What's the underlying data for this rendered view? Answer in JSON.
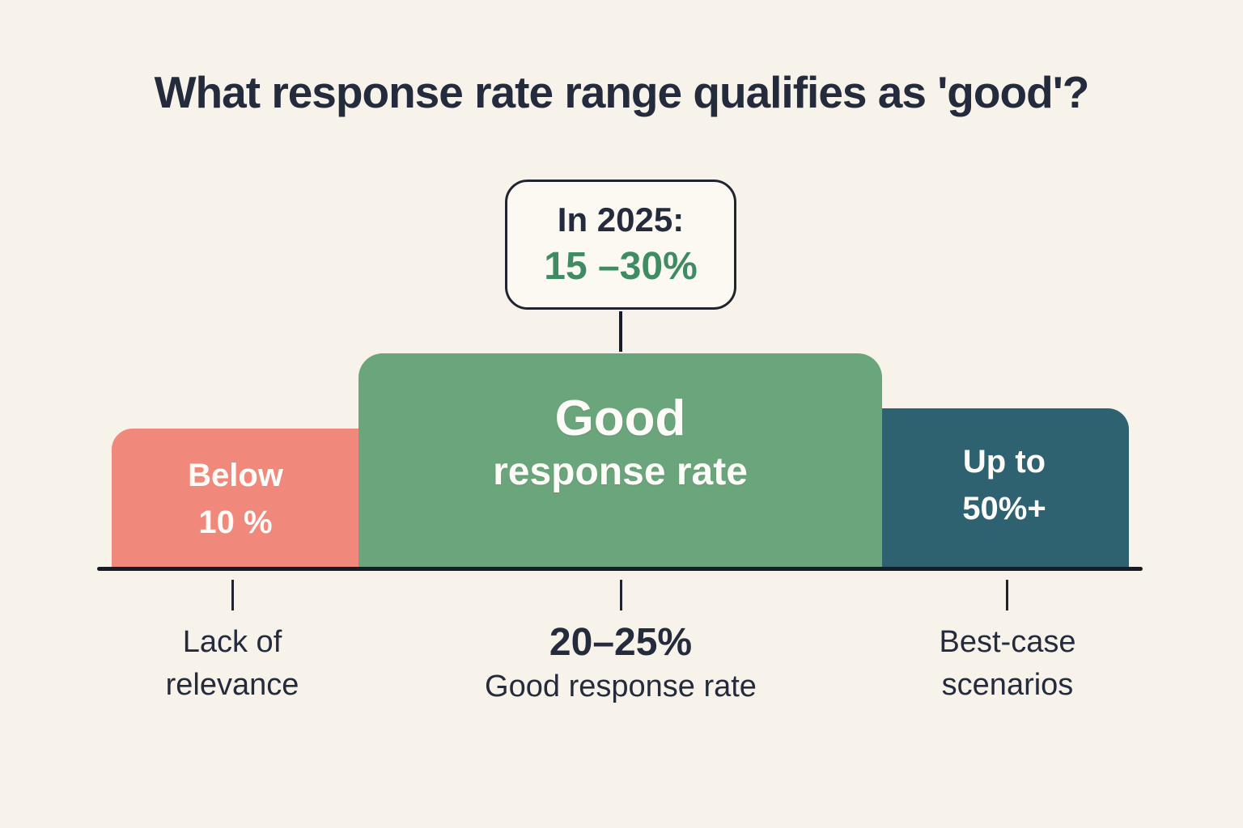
{
  "title": "What response rate range qualifies as 'good'?",
  "callout": {
    "prefix": "In 2025:",
    "range": "15 –30%"
  },
  "bars": {
    "low": {
      "line1": "Below",
      "line2": "10 %"
    },
    "good": {
      "line1": "Good",
      "line2": "response rate"
    },
    "high": {
      "line1": "Up to",
      "line2": "50%+"
    }
  },
  "axis_labels": {
    "low": {
      "line1": "Lack of",
      "line2": "relevance"
    },
    "good": {
      "value": "20–25%",
      "caption": "Good response rate"
    },
    "high": {
      "line1": "Best-case",
      "line2": "scenarios"
    }
  },
  "colors": {
    "background": "#F7F3EB",
    "text_dark": "#242B3C",
    "bar_low": "#F0897B",
    "bar_good": "#6BA57B",
    "bar_high": "#2E6270",
    "accent_green": "#3E8B64",
    "axis_line": "#161C28",
    "callout_fill": "#FCF9F3"
  },
  "chart_data": {
    "type": "bar",
    "title": "What response rate range qualifies as 'good'?",
    "categories": [
      "Below 10%",
      "Good response rate",
      "Up to 50%+"
    ],
    "relative_heights": [
      0.65,
      1.0,
      0.74
    ],
    "series": [
      {
        "name": "response-rate-ranges",
        "values": [
          10,
          25,
          50
        ],
        "value_labels": [
          "Below 10 %",
          "Good response rate",
          "Up to 50%+"
        ]
      }
    ],
    "bar_colors": [
      "#F0897B",
      "#6BA57B",
      "#2E6270"
    ],
    "annotations": [
      {
        "target": "Below 10%",
        "text": "Lack of relevance"
      },
      {
        "target": "Good response rate",
        "text": "20–25% Good response rate"
      },
      {
        "target": "Up to 50%+",
        "text": "Best-case scenarios"
      }
    ],
    "callout": {
      "label": "In 2025:",
      "value": "15 –30%",
      "points_to": "Good response rate"
    },
    "legend": false,
    "grid": false,
    "axis": "baseline only, no tick values"
  }
}
